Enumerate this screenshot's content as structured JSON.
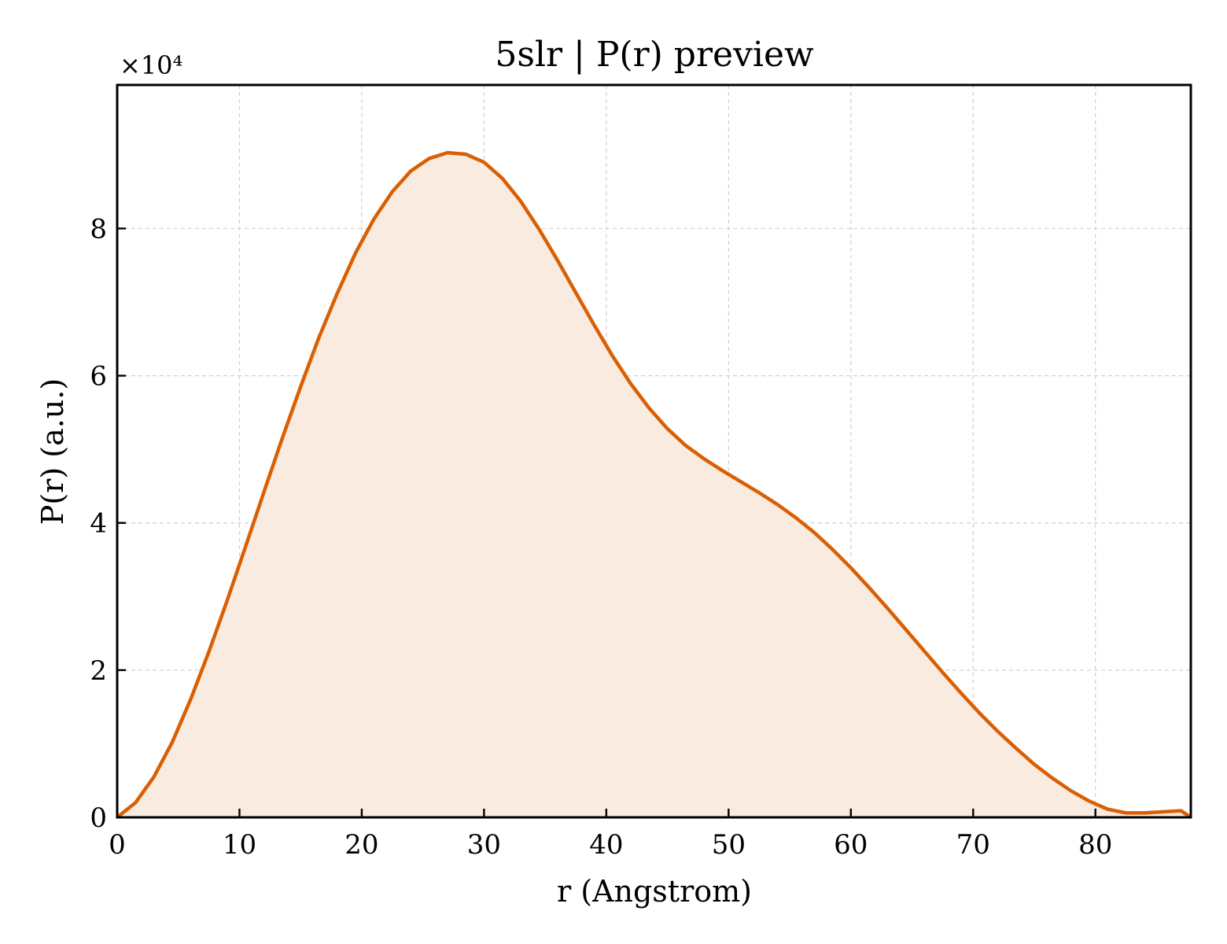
{
  "chart_data": {
    "type": "area",
    "title": "5slr | P(r) preview",
    "xlabel": "r (Angstrom)",
    "ylabel": "P(r) (a.u.)",
    "y_scale_label": "×10⁴",
    "xlim": [
      0,
      87.8
    ],
    "ylim": [
      0,
      99500
    ],
    "x_ticks": [
      0,
      10,
      20,
      30,
      40,
      50,
      60,
      70,
      80
    ],
    "y_ticks": [
      0,
      20000,
      40000,
      60000,
      80000
    ],
    "y_tick_labels": [
      "0",
      "2",
      "4",
      "6",
      "8"
    ],
    "grid": true,
    "series": [
      {
        "color": "#d95f02",
        "fill_color": "#f9ebe0",
        "x": [
          0,
          1.5,
          3.0,
          4.5,
          6.0,
          7.5,
          9.0,
          10.5,
          12.0,
          13.5,
          15.0,
          16.5,
          18.0,
          19.5,
          21.0,
          22.5,
          24.0,
          25.5,
          27.0,
          28.5,
          30.0,
          31.5,
          33.0,
          34.5,
          36.0,
          37.5,
          39.0,
          40.5,
          42.0,
          43.5,
          45.0,
          46.5,
          48.0,
          49.5,
          51.0,
          52.5,
          54.0,
          55.5,
          57.0,
          58.5,
          60.0,
          61.5,
          63.0,
          64.5,
          66.0,
          67.5,
          69.0,
          70.5,
          72.0,
          73.5,
          75.0,
          76.5,
          78.0,
          79.5,
          81.0,
          82.5,
          84.0,
          85.5,
          87.0,
          87.8
        ],
        "y": [
          0,
          2000,
          5500,
          10200,
          16000,
          22500,
          29500,
          36800,
          44200,
          51500,
          58500,
          65200,
          71200,
          76700,
          81300,
          85000,
          87800,
          89500,
          90300,
          90100,
          89000,
          86800,
          83700,
          79900,
          75700,
          71300,
          66900,
          62700,
          58900,
          55600,
          52800,
          50500,
          48700,
          47100,
          45600,
          44100,
          42500,
          40700,
          38700,
          36400,
          33900,
          31200,
          28400,
          25500,
          22600,
          19700,
          16900,
          14200,
          11700,
          9400,
          7200,
          5300,
          3600,
          2200,
          1100,
          600,
          600,
          750,
          900,
          0
        ]
      }
    ]
  }
}
